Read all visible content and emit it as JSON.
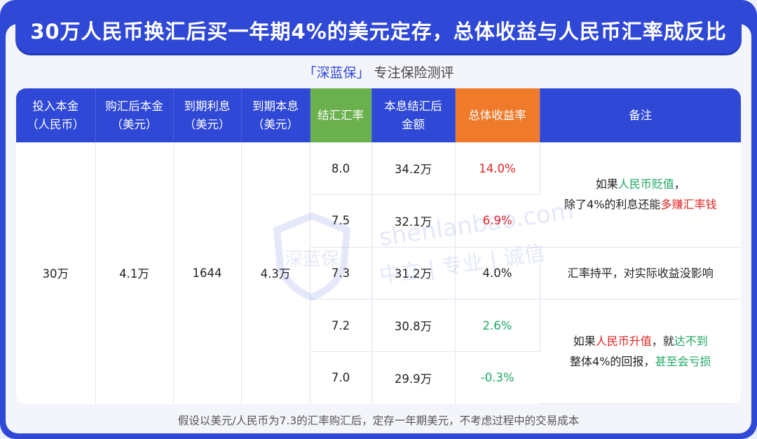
{
  "title": "30万人民币换汇后买一年期4%的美元定存，总体收益与人民币汇率成反比",
  "subtitle": {
    "brand": "「深蓝保」",
    "text": "专注保险测评"
  },
  "table": {
    "headers": [
      [
        "投入本金",
        "（人民币）"
      ],
      [
        "购汇后本金",
        "（美元）"
      ],
      [
        "到期利息",
        "（美元）"
      ],
      [
        "到期本息",
        "（美元）"
      ],
      [
        "结汇汇率",
        ""
      ],
      [
        "本息结汇后",
        "金额"
      ],
      [
        "总体收益率",
        ""
      ],
      [
        "备注",
        ""
      ]
    ],
    "fixed": {
      "principal_rmb": "30万",
      "principal_usd": "4.1万",
      "interest_usd": "1644",
      "total_usd": "4.3万"
    },
    "rows": [
      {
        "rate": "8.0",
        "amount": "34.2万",
        "yield": "14.0%"
      },
      {
        "rate": "7.5",
        "amount": "32.1万",
        "yield": "6.9%"
      },
      {
        "rate": "7.3",
        "amount": "31.2万",
        "yield": "4.0%"
      },
      {
        "rate": "7.2",
        "amount": "30.8万",
        "yield": "2.6%"
      },
      {
        "rate": "7.0",
        "amount": "29.9万",
        "yield": "-0.3%"
      }
    ],
    "notes": {
      "depreciate": {
        "p1": "如果",
        "p2": "人民币贬值",
        "p3": "，",
        "p4": "除了4%的利息还能",
        "p5": "多赚汇率钱"
      },
      "flat": "汇率持平，对实际收益没影响",
      "appreciate": {
        "p1": "如果",
        "p2": "人民币升值",
        "p3": "，就",
        "p4": "达不到",
        "p5": "整体4%的回报，",
        "p6": "甚至会亏损"
      }
    }
  },
  "watermark": {
    "line1": "shenlanbao.com",
    "line2": "中立 | 专业 | 诚信",
    "logo": "深蓝保"
  },
  "footer": "假设以美元/人民币为7.3的汇率购汇后，定存一年期美元，不考虑过程中的交易成本"
}
